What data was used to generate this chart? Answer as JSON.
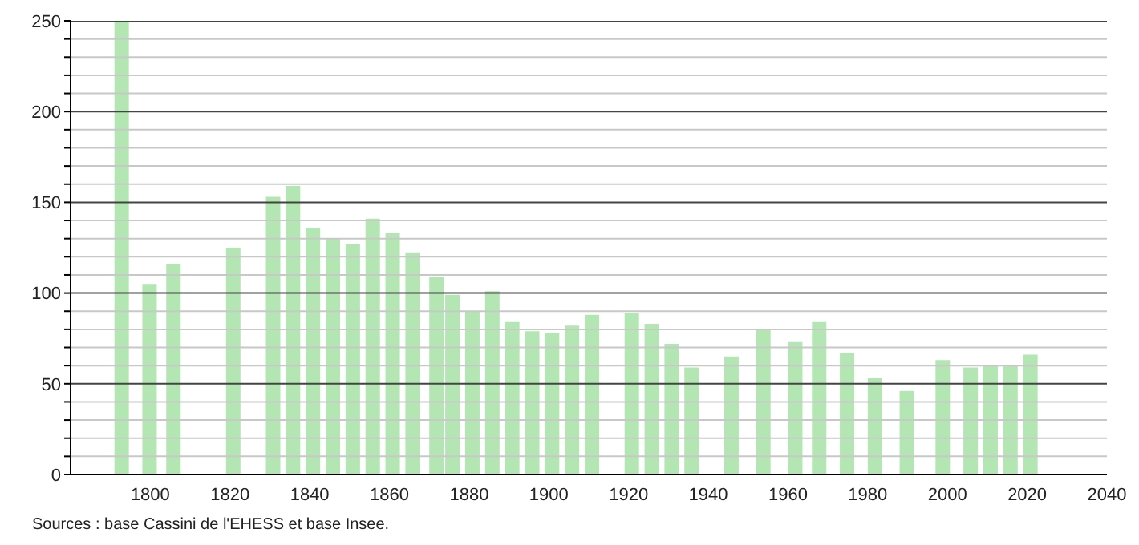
{
  "chart_data": {
    "type": "bar",
    "x": [
      1793,
      1800,
      1806,
      1821,
      1831,
      1836,
      1841,
      1846,
      1851,
      1856,
      1861,
      1866,
      1872,
      1876,
      1881,
      1886,
      1891,
      1896,
      1901,
      1906,
      1911,
      1921,
      1926,
      1931,
      1936,
      1946,
      1954,
      1962,
      1968,
      1975,
      1982,
      1990,
      1999,
      2006,
      2011,
      2016,
      2021
    ],
    "values": [
      250,
      105,
      116,
      125,
      153,
      159,
      136,
      130,
      127,
      141,
      133,
      122,
      109,
      99,
      90,
      101,
      84,
      79,
      78,
      82,
      88,
      89,
      83,
      72,
      59,
      65,
      80,
      73,
      84,
      67,
      53,
      46,
      63,
      59,
      60,
      60,
      66
    ],
    "color": "#b3e6b3",
    "xlim": [
      1780,
      2040
    ],
    "xticks": [
      1800,
      1820,
      1840,
      1860,
      1880,
      1900,
      1920,
      1940,
      1960,
      1980,
      2000,
      2020,
      2040
    ],
    "ylim": [
      0,
      250
    ],
    "yticks": [
      0,
      {
        "value": 10,
        "label": null
      },
      {
        "value": 20,
        "label": null
      },
      {
        "value": 30,
        "label": null
      },
      {
        "value": 40,
        "label": null
      },
      50,
      {
        "value": 60,
        "label": null
      },
      {
        "value": 70,
        "label": null
      },
      {
        "value": 80,
        "label": null
      },
      {
        "value": 90,
        "label": null
      },
      100,
      {
        "value": 110,
        "label": null
      },
      {
        "value": 120,
        "label": null
      },
      {
        "value": 130,
        "label": null
      },
      {
        "value": 140,
        "label": null
      },
      150,
      {
        "value": 160,
        "label": null
      },
      {
        "value": 170,
        "label": null
      },
      {
        "value": 180,
        "label": null
      },
      {
        "value": 190,
        "label": null
      },
      200,
      {
        "value": 210,
        "label": null
      },
      {
        "value": 220,
        "label": null
      },
      {
        "value": 230,
        "label": null
      },
      {
        "value": 240,
        "label": null
      },
      250
    ],
    "grid": "y",
    "annotations": [
      "Sources : base Cassini de l'EHESS et base Insee."
    ]
  }
}
